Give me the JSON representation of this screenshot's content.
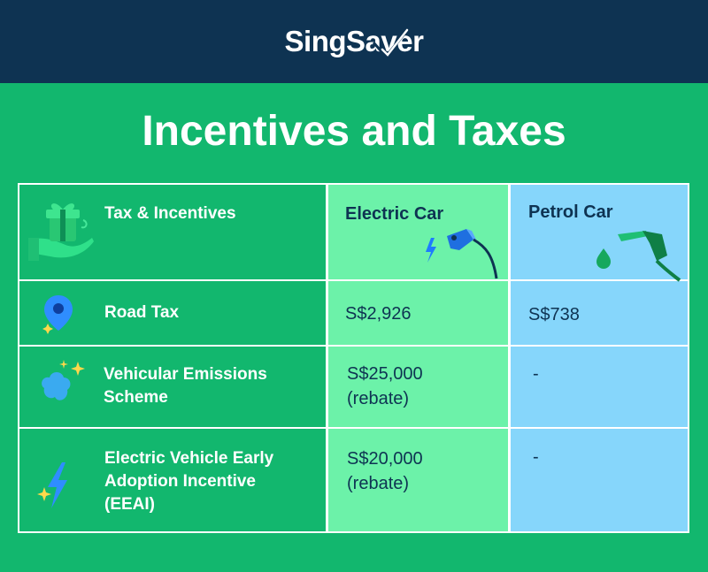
{
  "brand": {
    "name": "SingSaver"
  },
  "title": "Incentives and Taxes",
  "table": {
    "headers": {
      "col1": "Tax & Incentives",
      "col2": "Electric Car",
      "col3": "Petrol Car"
    },
    "rows": [
      {
        "label": "Road Tax",
        "electric": "S$2,926",
        "petrol": "S$738",
        "icon": "map-pin-icon"
      },
      {
        "label_lines": [
          "Vehicular Emissions",
          "Scheme"
        ],
        "electric_lines": [
          "S$25,000",
          "(rebate)"
        ],
        "petrol": "-",
        "icon": "cloud-sparkle-icon"
      },
      {
        "label_lines": [
          "Electric Vehicle Early",
          "Adoption Incentive",
          "(EEAI)"
        ],
        "electric_lines": [
          "S$20,000",
          "(rebate)"
        ],
        "petrol": "-",
        "icon": "lightning-icon"
      }
    ]
  },
  "icons": [
    "gift-hand-icon",
    "ev-charger-icon",
    "fuel-nozzle-icon"
  ],
  "colors": {
    "header_bg": "#0e3352",
    "page_bg": "#12b76e",
    "electric_col": "#6cf2a9",
    "petrol_col": "#86d6fb",
    "text_dark": "#0e3352"
  }
}
